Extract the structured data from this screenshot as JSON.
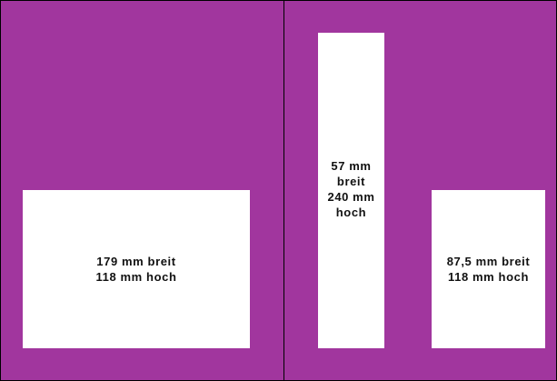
{
  "colors": {
    "background": "#a1369e",
    "insert": "#ffffff",
    "line": "#000000"
  },
  "panels": {
    "left_insert": {
      "lines": [
        "179 mm breit",
        "118 mm hoch"
      ]
    },
    "middle_insert": {
      "lines": [
        "57 mm",
        "breit",
        "240 mm",
        "hoch"
      ]
    },
    "right_insert": {
      "lines": [
        "87,5 mm breit",
        "118 mm hoch"
      ]
    }
  }
}
